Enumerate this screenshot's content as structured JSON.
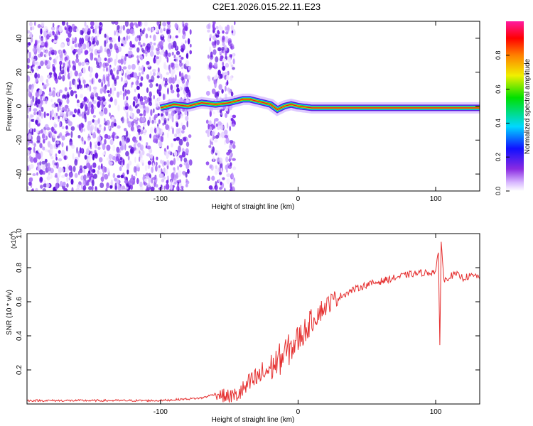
{
  "title": "C2E1.2026.015.22.11.E23",
  "colors": {
    "snr_line": "#e53030",
    "spectrogram_cloud": "#7a2cf0",
    "ridge_line": "#e8161c",
    "frame": "#000000"
  },
  "chart_data": [
    {
      "type": "heatmap",
      "title": "C2E1.2026.015.22.11.E23",
      "xlabel": "Height of straight line (km)",
      "ylabel": "Frequency (Hz)",
      "xlim": [
        -197,
        132
      ],
      "ylim": [
        -50,
        50
      ],
      "xticks": [
        -100,
        0,
        100
      ],
      "yticks": [
        -40,
        -20,
        0,
        20,
        40
      ],
      "grid": false,
      "colorbar": {
        "label": "Normalized spectral amplitude",
        "range": [
          0.0,
          1.0
        ],
        "ticks": [
          "0.0",
          "0.2",
          "0.4",
          "0.6",
          "0.8"
        ],
        "colormap": [
          "#ffffff",
          "#d8b8ff",
          "#8a2be2",
          "#1010ff",
          "#00d8ff",
          "#00e000",
          "#f0f000",
          "#ff8000",
          "#ff0000",
          "#ff1aa0"
        ]
      },
      "noise_regions": [
        {
          "x": [
            -197,
            -78
          ],
          "y": [
            -50,
            50
          ],
          "level": "moderate"
        },
        {
          "x": [
            -66,
            -46
          ],
          "y": [
            -50,
            50
          ],
          "level": "moderate"
        }
      ],
      "ridge": {
        "x": [
          -100,
          -90,
          -80,
          -70,
          -60,
          -50,
          -45,
          -40,
          -35,
          -30,
          -25,
          -20,
          -15,
          -10,
          -5,
          0,
          10,
          20,
          40,
          60,
          80,
          100,
          120,
          132
        ],
        "y": [
          -1,
          1,
          0,
          2,
          1,
          2,
          3,
          4,
          4,
          3,
          2,
          1,
          -2,
          0,
          1,
          0,
          -1,
          -1,
          -1,
          -1,
          -1,
          -1,
          -1,
          -1
        ]
      }
    },
    {
      "type": "line",
      "xlabel": "Height of straight line (km)",
      "ylabel": "SNR (10 * v/v)",
      "y_multiplier": "(x10",
      "y_multiplier_exp": "4",
      "y_multiplier_close": ")",
      "xlim": [
        -197,
        132
      ],
      "ylim": [
        0.0,
        1.0
      ],
      "xticks": [
        -100,
        0,
        100
      ],
      "yticks": [
        0.2,
        0.4,
        0.6,
        0.8,
        1.0
      ],
      "grid": false,
      "series": [
        {
          "x": [
            -197,
            -180,
            -160,
            -140,
            -120,
            -100,
            -90,
            -80,
            -70,
            -60,
            -50,
            -45,
            -40,
            -35,
            -30,
            -25,
            -20,
            -15,
            -10,
            -5,
            0,
            5,
            10,
            15,
            20,
            25,
            30,
            40,
            50,
            60,
            70,
            80,
            90,
            95,
            100,
            102,
            103,
            104,
            106,
            110,
            115,
            120,
            125,
            132
          ],
          "y": [
            0.02,
            0.02,
            0.02,
            0.02,
            0.02,
            0.02,
            0.025,
            0.03,
            0.035,
            0.06,
            0.04,
            0.05,
            0.08,
            0.12,
            0.15,
            0.18,
            0.21,
            0.25,
            0.29,
            0.33,
            0.38,
            0.43,
            0.49,
            0.54,
            0.57,
            0.61,
            0.63,
            0.67,
            0.7,
            0.72,
            0.74,
            0.76,
            0.77,
            0.77,
            0.78,
            0.88,
            0.34,
            0.96,
            0.72,
            0.75,
            0.76,
            0.74,
            0.75,
            0.75
          ]
        }
      ]
    }
  ]
}
